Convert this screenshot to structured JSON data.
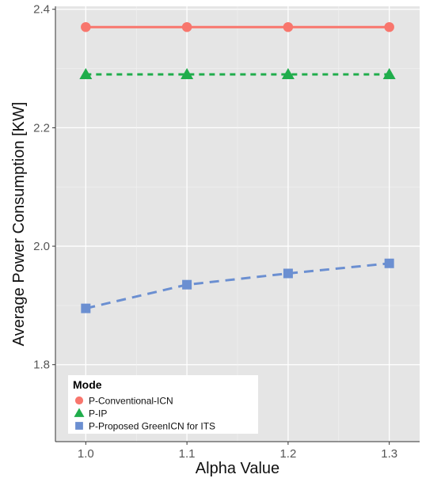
{
  "chart_data": {
    "type": "line",
    "xlabel": "Alpha Value",
    "ylabel": "Average Power Consumption [KW]",
    "x": [
      1.0,
      1.1,
      1.2,
      1.3
    ],
    "x_tick_labels": [
      "1.0",
      "1.1",
      "1.2",
      "1.3"
    ],
    "xlim": [
      0.97,
      1.33
    ],
    "ylim": [
      1.67,
      2.405
    ],
    "y_ticks": [
      1.8,
      2.0,
      2.2,
      2.4
    ],
    "y_tick_labels": [
      "1.8",
      "2.0",
      "2.2",
      "2.4"
    ],
    "grid": true,
    "legend": {
      "title": "Mode",
      "position": "bottom-left",
      "entries": [
        "P-Conventional-ICN",
        "P-IP",
        "P-Proposed GreenICN for ITS"
      ]
    },
    "series": [
      {
        "name": "P-Conventional-ICN",
        "values": [
          2.37,
          2.37,
          2.37,
          2.37
        ],
        "color": "#f8766d",
        "marker": "circle",
        "line": "solid"
      },
      {
        "name": "P-IP",
        "values": [
          2.29,
          2.29,
          2.29,
          2.29
        ],
        "color": "#1fad4b",
        "marker": "triangle",
        "line": "dashed"
      },
      {
        "name": "P-Proposed GreenICN for ITS",
        "values": [
          1.895,
          1.935,
          1.954,
          1.971
        ],
        "color": "#6b8fd1",
        "marker": "square",
        "line": "longdash"
      }
    ]
  }
}
